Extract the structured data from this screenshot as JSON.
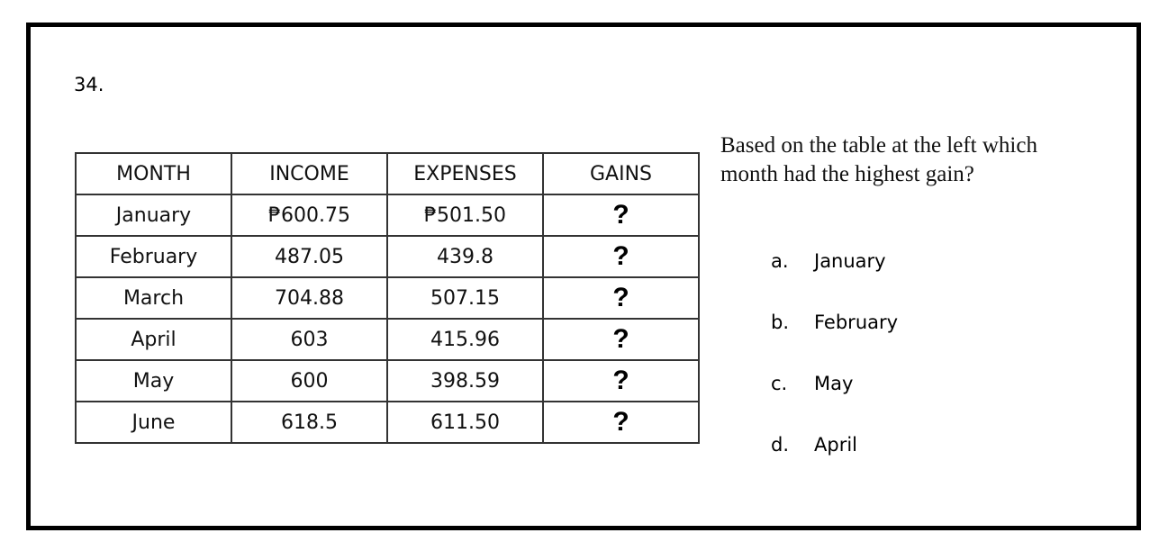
{
  "question_number": "34.",
  "table": {
    "headers": [
      "MONTH",
      "INCOME",
      "EXPENSES",
      "GAINS"
    ],
    "rows": [
      [
        "January",
        "₱600.75",
        "₱501.50",
        "?"
      ],
      [
        "February",
        "487.05",
        "439.8",
        "?"
      ],
      [
        "March",
        "704.88",
        "507.15",
        "?"
      ],
      [
        "April",
        "603",
        "415.96",
        "?"
      ],
      [
        "May",
        "600",
        "398.59",
        "?"
      ],
      [
        "June",
        "618.5",
        "611.50",
        "?"
      ]
    ]
  },
  "question_text": "Based on the table at the left which month had the highest gain?",
  "options": [
    {
      "letter": "a.",
      "text": "January"
    },
    {
      "letter": "b.",
      "text": "February"
    },
    {
      "letter": "c.",
      "text": "May"
    },
    {
      "letter": "d.",
      "text": "April"
    }
  ]
}
